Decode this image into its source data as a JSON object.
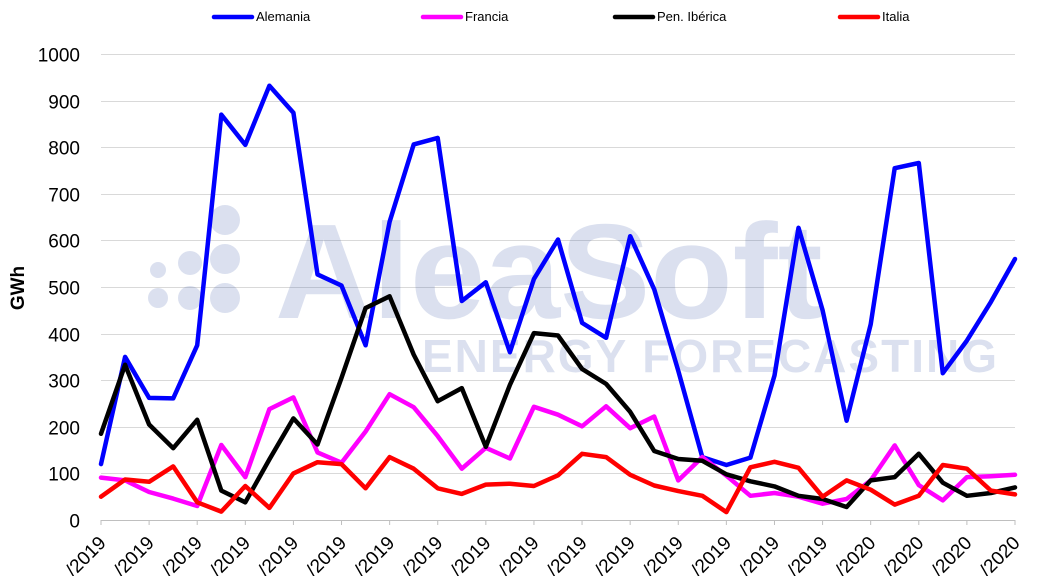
{
  "chart_data": {
    "type": "line",
    "ylabel": "GWh",
    "ylim": [
      0,
      1000
    ],
    "yticks": [
      0,
      100,
      200,
      300,
      400,
      500,
      600,
      700,
      800,
      900,
      1000
    ],
    "grid": "horizontal",
    "legend_position": "top",
    "watermark": {
      "brand": "AleaSoft",
      "tagline": "ENERGY FORECASTING"
    },
    "x_tick_labels": [
      "/2019",
      "/2019",
      "/2019",
      "/2019",
      "/2019",
      "/2019",
      "/2019",
      "/2019",
      "/2019",
      "/2019",
      "/2019",
      "/2019",
      "/2019",
      "/2019",
      "/2019",
      "/2019",
      "/2020",
      "/2020",
      "/2020",
      "/2020"
    ],
    "series": [
      {
        "name": "Alemania",
        "color": "#0000ff",
        "values": [
          120,
          350,
          262,
          261,
          375,
          870,
          805,
          932,
          874,
          527,
          503,
          375,
          640,
          806,
          820,
          470,
          510,
          360,
          517,
          602,
          423,
          391,
          609,
          495,
          320,
          135,
          118,
          134,
          310,
          627,
          450,
          213,
          420,
          755,
          766,
          315,
          385,
          468,
          560
        ]
      },
      {
        "name": "Francia",
        "color": "#ff00ff",
        "values": [
          91,
          85,
          60,
          46,
          30,
          161,
          92,
          238,
          263,
          145,
          123,
          190,
          270,
          242,
          180,
          110,
          155,
          132,
          243,
          226,
          201,
          244,
          197,
          222,
          85,
          135,
          95,
          52,
          58,
          50,
          35,
          45,
          85,
          160,
          75,
          42,
          92,
          94,
          97
        ]
      },
      {
        "name": "Pen. Ibérica",
        "color": "#000000",
        "values": [
          185,
          333,
          205,
          154,
          215,
          63,
          38,
          130,
          218,
          162,
          305,
          455,
          480,
          355,
          255,
          283,
          157,
          290,
          401,
          396,
          324,
          292,
          232,
          148,
          131,
          127,
          98,
          83,
          72,
          52,
          45,
          28,
          85,
          92,
          142,
          80,
          52,
          58,
          70
        ]
      },
      {
        "name": "Italia",
        "color": "#ff0000",
        "values": [
          50,
          87,
          82,
          115,
          38,
          18,
          73,
          26,
          100,
          124,
          120,
          68,
          135,
          110,
          68,
          56,
          76,
          78,
          73,
          96,
          142,
          135,
          97,
          74,
          62,
          52,
          17,
          113,
          125,
          112,
          50,
          85,
          65,
          33,
          52,
          118,
          110,
          63,
          55
        ]
      }
    ]
  }
}
